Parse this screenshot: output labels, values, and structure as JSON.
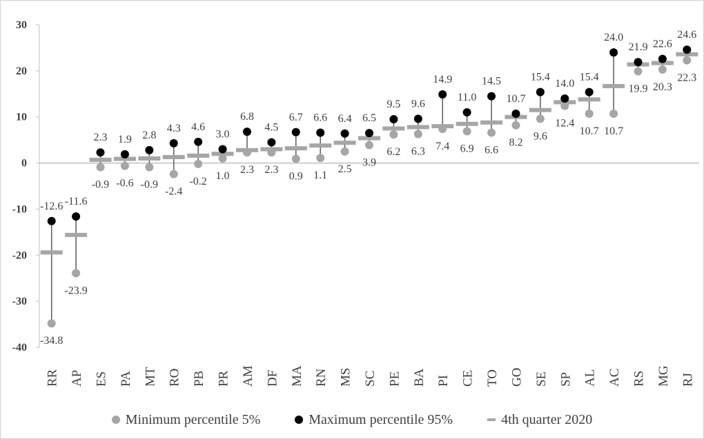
{
  "chart_data": {
    "type": "scatter",
    "categories": [
      "RR",
      "AP",
      "ES",
      "PA",
      "MT",
      "RO",
      "PB",
      "PR",
      "AM",
      "DF",
      "MA",
      "RN",
      "MS",
      "SC",
      "PE",
      "BA",
      "PI",
      "CE",
      "TO",
      "GO",
      "SE",
      "SP",
      "AL",
      "AC",
      "RS",
      "MG",
      "RJ"
    ],
    "series": [
      {
        "name": "Minimum percentile 5%",
        "color": "#a6a6a6",
        "values": [
          -34.8,
          -23.9,
          -0.9,
          -0.6,
          -0.9,
          -2.4,
          -0.2,
          1.0,
          2.3,
          2.3,
          0.9,
          1.1,
          2.5,
          3.9,
          6.2,
          6.3,
          7.4,
          6.9,
          6.6,
          8.2,
          9.6,
          12.4,
          10.7,
          10.7,
          19.9,
          20.3,
          22.3
        ],
        "labels": [
          "-34.8",
          "-23.9",
          "-0.9",
          "-0.6",
          "-0.9",
          "-2.4",
          "-0.2",
          "1.0",
          "2.3",
          "2.3",
          "0.9",
          "1.1",
          "2.5",
          "3.9",
          "6.2",
          "6.3",
          "7.4",
          "6.9",
          "6.6",
          "8.2",
          "9.6",
          "12.4",
          "10.7",
          "10.7",
          "19.9",
          "20.3",
          "22.3"
        ]
      },
      {
        "name": "Maximum percentile 95%",
        "color": "#000000",
        "values": [
          -12.6,
          -11.6,
          2.3,
          1.9,
          2.8,
          4.3,
          4.6,
          3.0,
          6.8,
          4.5,
          6.7,
          6.6,
          6.4,
          6.5,
          9.5,
          9.6,
          14.9,
          11.0,
          14.5,
          10.7,
          15.4,
          14.0,
          15.4,
          24.0,
          21.9,
          22.6,
          24.6
        ],
        "labels": [
          "-12.6",
          "-11.6",
          "2.3",
          "1.9",
          "2.8",
          "4.3",
          "4.6",
          "3.0",
          "6.8",
          "4.5",
          "6.7",
          "6.6",
          "6.4",
          "6.5",
          "9.5",
          "9.6",
          "14.9",
          "11.0",
          "14.5",
          "10.7",
          "15.4",
          "14.0",
          "15.4",
          "24.0",
          "21.9",
          "22.6",
          "24.6"
        ]
      },
      {
        "name": "4th quarter 2020",
        "color": "#a6a6a6",
        "values": [
          -19.4,
          -15.6,
          0.7,
          0.9,
          1.0,
          1.3,
          1.6,
          2.0,
          2.8,
          3.0,
          3.2,
          3.8,
          4.4,
          5.4,
          7.5,
          7.8,
          8.0,
          8.5,
          8.8,
          10.0,
          11.5,
          13.2,
          13.8,
          16.7,
          21.4,
          21.7,
          23.6
        ]
      }
    ],
    "ylim": [
      -40,
      30
    ],
    "yticks": [
      "30",
      "20",
      "10",
      "0",
      "-10",
      "-20",
      "-30",
      "-40"
    ],
    "ytick_values": [
      30,
      20,
      10,
      0,
      -10,
      -20,
      -30,
      -40
    ],
    "grid": false,
    "legend_position": "bottom",
    "colors": {
      "axis": "#bfbfbf",
      "text": "#404040",
      "whisker": "#595959",
      "min": "#a6a6a6",
      "max": "#000000",
      "quarter": "#a6a6a6"
    }
  },
  "legend": {
    "min_label": "Minimum percentile 5%",
    "max_label": "Maximum percentile 95%",
    "quarter_label": "4th quarter 2020"
  }
}
